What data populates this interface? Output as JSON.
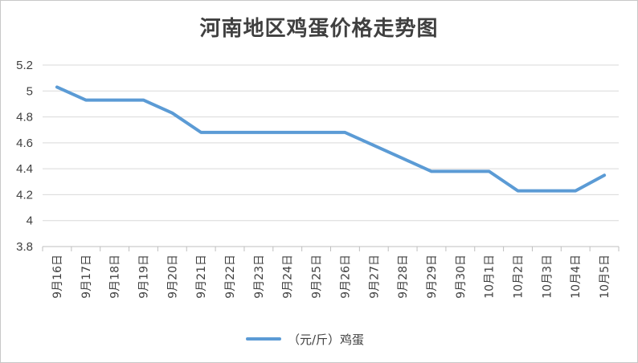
{
  "chart_data": {
    "type": "line",
    "title": "河南地区鸡蛋价格走势图",
    "xlabel": "",
    "ylabel": "",
    "categories": [
      "9月16日",
      "9月17日",
      "9月18日",
      "9月19日",
      "9月20日",
      "9月21日",
      "9月22日",
      "9月23日",
      "9月24日",
      "9月25日",
      "9月26日",
      "9月27日",
      "9月28日",
      "9月29日",
      "9月30日",
      "10月1日",
      "10月2日",
      "10月3日",
      "10月4日",
      "10月5日"
    ],
    "series": [
      {
        "name": "（元/斤）鸡蛋",
        "values": [
          5.03,
          4.93,
          4.93,
          4.93,
          4.83,
          4.68,
          4.68,
          4.68,
          4.68,
          4.68,
          4.68,
          4.58,
          4.48,
          4.38,
          4.38,
          4.38,
          4.23,
          4.23,
          4.23,
          4.35
        ],
        "color": "#5b9bd5"
      }
    ],
    "ylim": [
      3.8,
      5.2
    ],
    "yticks": [
      "3.8",
      "4",
      "4.2",
      "4.4",
      "4.6",
      "4.8",
      "5",
      "5.2"
    ],
    "grid": true,
    "legend": "bottom"
  }
}
